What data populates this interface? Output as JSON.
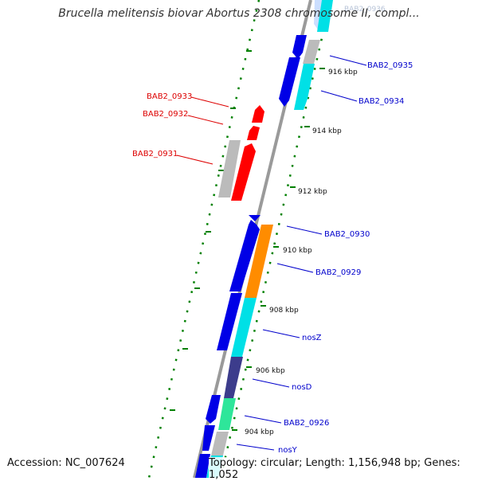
{
  "title": "Brucella melitensis biovar Abortus 2308 chromosome II, compl...",
  "accession": "Accession: NC_007624",
  "topology": "Topology: circular; Length: 1,156,948 bp; Genes: 1,052",
  "ghost_label": "BAB2_0936",
  "colors": {
    "blue": "#0000e6",
    "cyan": "#00e0e6",
    "red": "#ff0000",
    "grey": "#bbbbbb",
    "orange": "#ff8c00",
    "navy": "#3c3c8c",
    "teal": "#2ee69a",
    "tick": "#008000"
  },
  "kbp_ticks": [
    "916 kbp",
    "914 kbp",
    "912 kbp",
    "910 kbp",
    "908 kbp",
    "906 kbp",
    "904 kbp"
  ],
  "gene_labels_right": [
    "BAB2_0935",
    "BAB2_0934",
    "BAB2_0930",
    "BAB2_0929",
    "nosZ",
    "nosD",
    "BAB2_0926",
    "nosY"
  ],
  "gene_labels_left": [
    "BAB2_0933",
    "BAB2_0932",
    "BAB2_0931"
  ]
}
